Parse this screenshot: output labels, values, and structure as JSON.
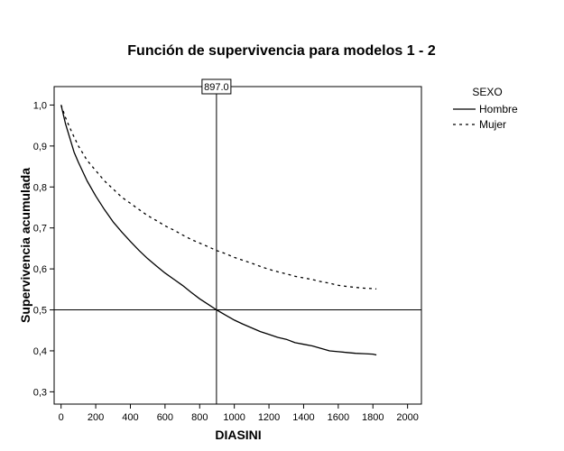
{
  "chart_data": {
    "type": "line",
    "title": "Función de supervivencia para modelos 1 - 2",
    "xlabel": "DIASINI",
    "ylabel": "Supervivencia acumulada",
    "xlim": [
      -40,
      2080
    ],
    "ylim": [
      0.27,
      1.045
    ],
    "x_ticks": [
      0,
      200,
      400,
      600,
      800,
      1000,
      1200,
      1400,
      1600,
      1800,
      2000
    ],
    "y_ticks": [
      0.3,
      0.4,
      0.5,
      0.6,
      0.7,
      0.8,
      0.9,
      1.0
    ],
    "y_tick_labels": [
      "0,3",
      "0,4",
      "0,5",
      "0,6",
      "0,7",
      "0,8",
      "0,9",
      "1,0"
    ],
    "grid": false,
    "legend": {
      "title": "SEXO",
      "position": "right"
    },
    "reference_lines": {
      "x": 897,
      "x_label": "897.0",
      "y": 0.5
    },
    "series": [
      {
        "name": "Hombre",
        "style": "solid",
        "x": [
          0,
          25,
          50,
          75,
          100,
          150,
          200,
          250,
          300,
          350,
          400,
          450,
          500,
          550,
          600,
          650,
          700,
          750,
          800,
          850,
          897,
          950,
          1000,
          1050,
          1100,
          1150,
          1200,
          1250,
          1300,
          1350,
          1400,
          1450,
          1500,
          1550,
          1600,
          1650,
          1700,
          1750,
          1800,
          1820
        ],
        "y": [
          1.0,
          0.955,
          0.92,
          0.885,
          0.86,
          0.815,
          0.778,
          0.745,
          0.715,
          0.69,
          0.667,
          0.645,
          0.625,
          0.607,
          0.59,
          0.575,
          0.56,
          0.543,
          0.527,
          0.513,
          0.5,
          0.487,
          0.475,
          0.465,
          0.456,
          0.447,
          0.44,
          0.433,
          0.428,
          0.42,
          0.416,
          0.412,
          0.406,
          0.4,
          0.398,
          0.396,
          0.394,
          0.393,
          0.392,
          0.39
        ]
      },
      {
        "name": "Mujer",
        "style": "dashed",
        "x": [
          0,
          25,
          50,
          75,
          100,
          150,
          200,
          250,
          300,
          350,
          400,
          450,
          500,
          550,
          600,
          650,
          700,
          750,
          800,
          850,
          897,
          950,
          1000,
          1050,
          1100,
          1150,
          1200,
          1250,
          1300,
          1350,
          1400,
          1450,
          1500,
          1550,
          1600,
          1650,
          1700,
          1750,
          1800,
          1820
        ],
        "y": [
          1.0,
          0.97,
          0.945,
          0.922,
          0.9,
          0.865,
          0.84,
          0.815,
          0.795,
          0.775,
          0.76,
          0.745,
          0.73,
          0.718,
          0.705,
          0.695,
          0.683,
          0.672,
          0.663,
          0.654,
          0.645,
          0.637,
          0.628,
          0.621,
          0.614,
          0.606,
          0.599,
          0.593,
          0.588,
          0.582,
          0.578,
          0.574,
          0.569,
          0.565,
          0.56,
          0.557,
          0.555,
          0.553,
          0.552,
          0.551
        ]
      }
    ]
  }
}
